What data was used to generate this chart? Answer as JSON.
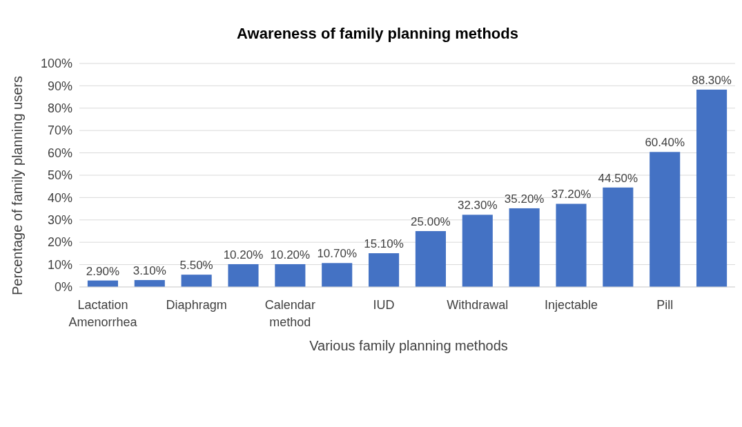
{
  "chart_data": {
    "type": "bar",
    "title": "Awareness of family planning methods",
    "xlabel": "Various family planning methods",
    "ylabel": "Percentage of family planning users",
    "categories": [
      "Lactation Amenorrhea",
      null,
      "Diaphragm",
      null,
      "Calendar method",
      null,
      "IUD",
      null,
      "Withdrawal",
      null,
      "Injectable",
      null,
      "Pill",
      null
    ],
    "values": [
      2.9,
      3.1,
      5.5,
      10.2,
      10.2,
      10.7,
      15.1,
      25.0,
      32.3,
      35.2,
      37.2,
      44.5,
      60.4,
      88.3
    ],
    "value_labels": [
      "2.90%",
      "3.10%",
      "5.50%",
      "10.20%",
      "10.20%",
      "10.70%",
      "15.10%",
      "25.00%",
      "32.30%",
      "35.20%",
      "37.20%",
      "44.50%",
      "60.40%",
      "88.30%"
    ],
    "color": "#4472c4",
    "ylim": [
      0,
      100
    ],
    "yticks": [
      {
        "value": 0,
        "label": "0%"
      },
      {
        "value": 10,
        "label": "10%"
      },
      {
        "value": 20,
        "label": "20%"
      },
      {
        "value": 30,
        "label": "30%"
      },
      {
        "value": 40,
        "label": "40%"
      },
      {
        "value": 50,
        "label": "50%"
      },
      {
        "value": 60,
        "label": "60%"
      },
      {
        "value": 70,
        "label": "70%"
      },
      {
        "value": 80,
        "label": "80%"
      },
      {
        "value": 90,
        "label": "90%"
      },
      {
        "value": 100,
        "label": "100%"
      }
    ],
    "grid": "y"
  }
}
